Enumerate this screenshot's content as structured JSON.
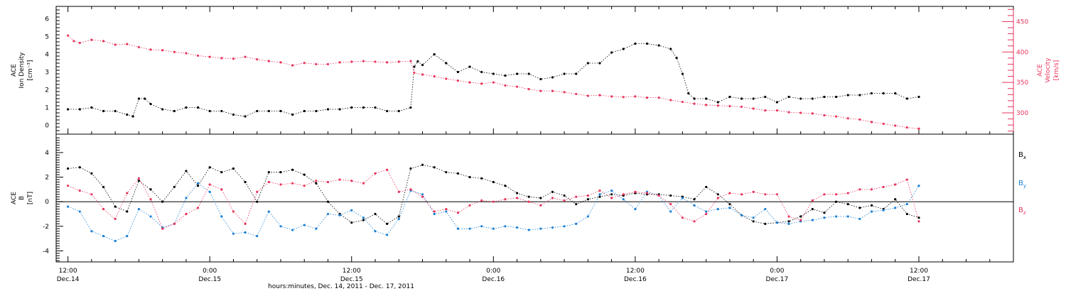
{
  "figure": {
    "xaxis_title": "hours:minutes, Dec. 14, 2011 - Dec. 17, 2011",
    "x_range_hours": [
      -1,
      80
    ],
    "x_ticks": [
      {
        "t": 0,
        "time": "12:00",
        "date": "Dec.14"
      },
      {
        "t": 12,
        "time": "0:00",
        "date": "Dec.15"
      },
      {
        "t": 24,
        "time": "12:00",
        "date": "Dec.15"
      },
      {
        "t": 36,
        "time": "0:00",
        "date": "Dec.16"
      },
      {
        "t": 48,
        "time": "12:00",
        "date": "Dec.16"
      },
      {
        "t": 60,
        "time": "0:00",
        "date": "Dec.17"
      },
      {
        "t": 72,
        "time": "12:00",
        "date": "Dec.17"
      }
    ]
  },
  "colors": {
    "density": "#000000",
    "velocity": "#e8345c",
    "bx": "#000000",
    "by": "#1a7fd4",
    "bz": "#e8345c",
    "axis": "#000000"
  },
  "chart_data": [
    {
      "type": "scatter",
      "panel": "top",
      "ylabel": [
        "ACE",
        "Ion Density",
        "[cm⁻³]"
      ],
      "ylim": [
        -0.5,
        6.7
      ],
      "yticks": [
        0,
        1,
        2,
        3,
        4,
        5,
        6
      ],
      "right_ylabel": [
        "ACE",
        "Velocity",
        "[km/s]"
      ],
      "right_ylim": [
        265,
        475
      ],
      "right_yticks": [
        300,
        350,
        400,
        450
      ],
      "grid": false,
      "series": [
        {
          "key": "density",
          "axis": "left",
          "x": [
            0,
            1,
            2,
            3,
            4,
            5,
            5.5,
            6,
            6.5,
            7,
            8,
            9,
            10,
            11,
            12,
            13,
            14,
            15,
            16,
            17,
            18,
            19,
            20,
            21,
            22,
            23,
            24,
            25,
            26,
            27,
            28,
            29,
            29.3,
            29.6,
            30,
            31,
            32,
            33,
            34,
            35,
            36,
            37,
            38,
            39,
            40,
            41,
            42,
            43,
            44,
            45,
            46,
            47,
            48,
            49,
            50,
            51,
            51.5,
            52,
            52.5,
            53,
            54,
            55,
            56,
            57,
            58,
            59,
            60,
            61,
            62,
            63,
            64,
            65,
            66,
            67,
            68,
            69,
            70,
            71,
            72
          ],
          "y": [
            0.9,
            0.9,
            1.0,
            0.8,
            0.8,
            0.6,
            0.5,
            1.5,
            1.5,
            1.2,
            0.9,
            0.8,
            1.0,
            1.0,
            0.8,
            0.8,
            0.6,
            0.5,
            0.8,
            0.8,
            0.8,
            0.6,
            0.8,
            0.8,
            0.9,
            0.9,
            1.0,
            1.0,
            1.0,
            0.8,
            0.8,
            1.0,
            3.3,
            3.6,
            3.4,
            4.0,
            3.5,
            3.0,
            3.3,
            3.0,
            2.9,
            2.8,
            2.9,
            2.9,
            2.6,
            2.7,
            2.9,
            2.9,
            3.5,
            3.5,
            4.1,
            4.3,
            4.6,
            4.6,
            4.5,
            4.3,
            3.8,
            2.9,
            1.8,
            1.5,
            1.5,
            1.3,
            1.6,
            1.5,
            1.5,
            1.6,
            1.3,
            1.6,
            1.5,
            1.5,
            1.6,
            1.6,
            1.7,
            1.7,
            1.8,
            1.8,
            1.8,
            1.5,
            1.6
          ]
        },
        {
          "key": "velocity",
          "axis": "right",
          "x": [
            0,
            0.5,
            1,
            2,
            3,
            4,
            5,
            6,
            7,
            8,
            9,
            10,
            11,
            12,
            13,
            14,
            15,
            16,
            17,
            18,
            19,
            20,
            21,
            22,
            23,
            24,
            25,
            26,
            27,
            28,
            29,
            29.3,
            30,
            31,
            32,
            33,
            34,
            35,
            36,
            37,
            38,
            39,
            40,
            41,
            42,
            43,
            44,
            45,
            46,
            47,
            48,
            49,
            50,
            51,
            52,
            53,
            54,
            55,
            56,
            57,
            58,
            59,
            60,
            61,
            62,
            63,
            64,
            65,
            66,
            67,
            68,
            69,
            70,
            71,
            72
          ],
          "y": [
            427,
            418,
            415,
            420,
            418,
            412,
            413,
            408,
            404,
            403,
            400,
            398,
            394,
            392,
            390,
            389,
            392,
            388,
            385,
            383,
            378,
            382,
            380,
            380,
            383,
            384,
            385,
            384,
            383,
            384,
            385,
            366,
            363,
            360,
            356,
            353,
            350,
            348,
            350,
            345,
            343,
            339,
            336,
            336,
            334,
            331,
            328,
            329,
            327,
            326,
            327,
            325,
            325,
            321,
            318,
            315,
            313,
            312,
            311,
            310,
            307,
            304,
            304,
            301,
            300,
            299,
            296,
            294,
            291,
            289,
            285,
            282,
            279,
            276,
            274
          ]
        }
      ]
    },
    {
      "type": "scatter",
      "panel": "bottom",
      "ylabel": [
        "ACE",
        "B",
        "[nT]"
      ],
      "ylim": [
        -4.9,
        5.5
      ],
      "yticks": [
        -4,
        -2,
        0,
        2,
        4
      ],
      "zero_line": true,
      "legend": "right",
      "grid": false,
      "series": [
        {
          "key": "bx",
          "legend_base": "B",
          "legend_sub": "x",
          "x": [
            0,
            1,
            2,
            3,
            4,
            5,
            6,
            7,
            8,
            9,
            10,
            11,
            12,
            13,
            14,
            15,
            16,
            17,
            18,
            19,
            20,
            21,
            22,
            23,
            24,
            25,
            26,
            27,
            28,
            29,
            30,
            31,
            32,
            33,
            34,
            35,
            36,
            37,
            38,
            39,
            40,
            41,
            42,
            43,
            44,
            45,
            46,
            47,
            48,
            49,
            50,
            51,
            52,
            53,
            54,
            55,
            56,
            57,
            58,
            59,
            60,
            61,
            62,
            63,
            64,
            65,
            66,
            67,
            68,
            69,
            70,
            71,
            72
          ],
          "y": [
            2.7,
            2.8,
            2.3,
            1.2,
            -0.4,
            -0.8,
            1.7,
            1.0,
            0.0,
            1.2,
            2.5,
            1.3,
            2.8,
            2.4,
            2.7,
            1.6,
            0.0,
            2.4,
            2.4,
            2.6,
            2.2,
            1.5,
            0.0,
            -1.0,
            -1.7,
            -1.5,
            -1.0,
            -1.8,
            -1.2,
            2.7,
            3.0,
            2.8,
            2.4,
            2.3,
            2.0,
            1.9,
            1.6,
            1.3,
            0.7,
            0.4,
            0.3,
            0.8,
            0.5,
            -0.2,
            0.2,
            0.4,
            0.6,
            0.5,
            0.7,
            0.6,
            0.6,
            0.5,
            0.4,
            0.2,
            1.2,
            0.6,
            -0.2,
            -1.1,
            -1.6,
            -1.8,
            -1.7,
            -1.6,
            -1.2,
            -0.6,
            -0.9,
            0.0,
            -0.2,
            -0.5,
            -0.3,
            -0.6,
            0.2,
            -1.0,
            -1.3
          ]
        },
        {
          "key": "by",
          "legend_base": "B",
          "legend_sub": "y",
          "x": [
            0,
            1,
            2,
            3,
            4,
            5,
            6,
            7,
            8,
            9,
            10,
            11,
            12,
            13,
            14,
            15,
            16,
            17,
            18,
            19,
            20,
            21,
            22,
            23,
            24,
            25,
            26,
            27,
            28,
            29,
            30,
            31,
            32,
            33,
            34,
            35,
            36,
            37,
            38,
            39,
            40,
            41,
            42,
            43,
            44,
            45,
            46,
            47,
            48,
            49,
            50,
            51,
            52,
            53,
            54,
            55,
            56,
            57,
            58,
            59,
            60,
            61,
            62,
            63,
            64,
            65,
            66,
            67,
            68,
            69,
            70,
            71,
            72
          ],
          "y": [
            -0.4,
            -0.8,
            -2.4,
            -2.8,
            -3.2,
            -2.8,
            -0.6,
            -1.2,
            -2.1,
            -1.8,
            0.3,
            1.5,
            0.8,
            -1.2,
            -2.6,
            -2.5,
            -2.8,
            -0.8,
            -2.0,
            -2.3,
            -1.9,
            -2.2,
            -1.0,
            -1.1,
            -0.7,
            -1.3,
            -2.4,
            -2.7,
            -1.4,
            0.9,
            0.6,
            -1.0,
            -0.8,
            -2.2,
            -2.2,
            -2.0,
            -2.2,
            -2.0,
            -2.1,
            -2.3,
            -2.2,
            -2.1,
            -2.0,
            -1.8,
            -1.2,
            0.6,
            0.9,
            0.2,
            -0.6,
            0.8,
            0.5,
            -0.8,
            0.3,
            -0.3,
            -0.8,
            -0.6,
            -0.5,
            -1.1,
            -1.3,
            -0.6,
            -1.7,
            -1.8,
            -1.6,
            -1.5,
            -1.3,
            -1.2,
            -1.2,
            -1.4,
            -0.8,
            -0.7,
            -0.5,
            -0.2,
            1.3
          ]
        },
        {
          "key": "bz",
          "legend_base": "B",
          "legend_sub": "z",
          "x": [
            0,
            1,
            2,
            3,
            4,
            5,
            6,
            7,
            8,
            9,
            10,
            11,
            12,
            13,
            14,
            15,
            16,
            17,
            18,
            19,
            20,
            21,
            22,
            23,
            24,
            25,
            26,
            27,
            28,
            29,
            30,
            31,
            32,
            33,
            34,
            35,
            36,
            37,
            38,
            39,
            40,
            41,
            42,
            43,
            44,
            45,
            46,
            47,
            48,
            49,
            50,
            51,
            52,
            53,
            54,
            55,
            56,
            57,
            58,
            59,
            60,
            61,
            62,
            63,
            64,
            65,
            66,
            67,
            68,
            69,
            70,
            71,
            72
          ],
          "y": [
            1.3,
            0.9,
            0.6,
            -0.6,
            -1.4,
            0.7,
            1.9,
            0.2,
            -2.2,
            -1.8,
            -1.0,
            -0.5,
            1.4,
            1.0,
            -0.8,
            -1.8,
            0.8,
            1.6,
            1.4,
            1.5,
            1.3,
            1.7,
            1.6,
            1.8,
            1.7,
            1.5,
            2.3,
            2.6,
            0.8,
            1.0,
            0.4,
            -0.8,
            -0.6,
            -0.9,
            -0.3,
            0.1,
            0.0,
            0.2,
            0.3,
            0.0,
            -0.3,
            0.3,
            0.1,
            0.4,
            0.5,
            0.9,
            0.3,
            0.6,
            0.8,
            0.7,
            0.5,
            -0.2,
            -1.3,
            -1.6,
            -1.0,
            0.3,
            0.7,
            0.6,
            0.8,
            0.6,
            0.6,
            -1.2,
            -1.5,
            0.1,
            0.6,
            0.6,
            0.7,
            1.0,
            1.0,
            1.2,
            1.4,
            1.8,
            -1.6
          ]
        }
      ]
    }
  ]
}
